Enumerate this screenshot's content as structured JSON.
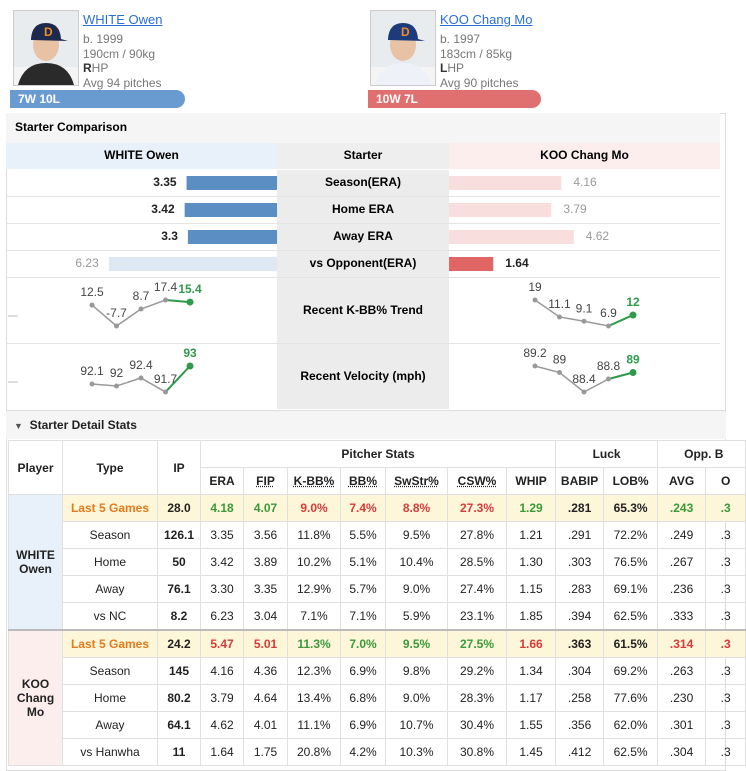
{
  "players": [
    {
      "name": "WHITE Owen",
      "born": "b. 1999",
      "body": "190cm / 90kg",
      "hand": "RHP",
      "pitches": "Avg 94 pitches",
      "record": "7W 10L",
      "color": "#6a9bd0",
      "cap": "#1d2a4d"
    },
    {
      "name": "KOO Chang Mo",
      "born": "b. 1997",
      "body": "183cm / 85kg",
      "hand": "LHP",
      "pitches": "Avg 90 pitches",
      "record": "10W 7L",
      "color": "#e07070",
      "cap": "#1d3b7a"
    }
  ],
  "comparison": {
    "title": "Starter Comparison",
    "header": [
      "WHITE Owen",
      "Starter",
      "KOO Chang Mo"
    ],
    "rows": [
      {
        "label": "Season(ERA)",
        "left": 3.35,
        "right": 4.16
      },
      {
        "label": "Home ERA",
        "left": 3.42,
        "right": 3.79
      },
      {
        "label": "Away ERA",
        "left": 3.3,
        "right": 4.62
      },
      {
        "label": "vs Opponent(ERA)",
        "left": 6.23,
        "right": 1.64
      }
    ],
    "trends": [
      {
        "label": "Recent K-BB% Trend",
        "left": [
          12.5,
          -7.7,
          8.7,
          17.4,
          15.4
        ],
        "right": [
          19,
          11.1,
          9.1,
          6.9,
          12
        ]
      },
      {
        "label": "Recent Velocity (mph)",
        "left": [
          92.1,
          92,
          92.4,
          91.7,
          93
        ],
        "right": [
          89.2,
          89,
          88.4,
          88.8,
          89
        ]
      }
    ]
  },
  "detail": {
    "title": "Starter Detail Stats",
    "groups": [
      "Pitcher Stats",
      "Luck",
      "Opp. B"
    ],
    "columns": [
      "Player",
      "Type",
      "IP",
      "ERA",
      "FIP",
      "K-BB%",
      "BB%",
      "SwStr%",
      "CSW%",
      "WHIP",
      "BABIP",
      "LOB%",
      "AVG",
      "O"
    ],
    "players": [
      {
        "name": "WHITE Owen",
        "color": "#e8f0f9",
        "rows": [
          {
            "type": "Last 5 Games",
            "cells": [
              "28.0",
              "4.18",
              "4.07",
              "9.0%",
              "7.4%",
              "8.8%",
              "27.3%",
              "1.29",
              ".281",
              "65.3%",
              ".243",
              ".3"
            ],
            "colors": [
              "#222",
              "#3a9a3a",
              "#3a9a3a",
              "#d63a3a",
              "#d63a3a",
              "#d63a3a",
              "#d63a3a",
              "#3a9a3a",
              "#222",
              "#222",
              "#3a9a3a",
              "#3a9a3a"
            ]
          },
          {
            "type": "Season",
            "cells": [
              "126.1",
              "3.35",
              "3.56",
              "11.8%",
              "5.5%",
              "9.5%",
              "27.8%",
              "1.21",
              ".291",
              "72.2%",
              ".249",
              ".3"
            ]
          },
          {
            "type": "Home",
            "cells": [
              "50",
              "3.42",
              "3.89",
              "10.2%",
              "5.1%",
              "10.4%",
              "28.5%",
              "1.30",
              ".303",
              "76.5%",
              ".267",
              ".3"
            ]
          },
          {
            "type": "Away",
            "cells": [
              "76.1",
              "3.30",
              "3.35",
              "12.9%",
              "5.7%",
              "9.0%",
              "27.4%",
              "1.15",
              ".283",
              "69.1%",
              ".236",
              ".3"
            ]
          },
          {
            "type": "vs NC",
            "cells": [
              "8.2",
              "6.23",
              "3.04",
              "7.1%",
              "7.1%",
              "5.9%",
              "23.1%",
              "1.85",
              ".394",
              "62.5%",
              ".333",
              ".3"
            ]
          }
        ]
      },
      {
        "name": "KOO Chang Mo",
        "color": "#fdeeee",
        "rows": [
          {
            "type": "Last 5 Games",
            "cells": [
              "24.2",
              "5.47",
              "5.01",
              "11.3%",
              "7.0%",
              "9.5%",
              "27.5%",
              "1.66",
              ".363",
              "61.5%",
              ".314",
              ".3"
            ],
            "colors": [
              "#222",
              "#d63a3a",
              "#d63a3a",
              "#3a9a3a",
              "#3a9a3a",
              "#3a9a3a",
              "#3a9a3a",
              "#d63a3a",
              "#222",
              "#222",
              "#d63a3a",
              "#d63a3a"
            ]
          },
          {
            "type": "Season",
            "cells": [
              "145",
              "4.16",
              "4.36",
              "12.3%",
              "6.9%",
              "9.8%",
              "29.2%",
              "1.34",
              ".304",
              "69.2%",
              ".263",
              ".3"
            ]
          },
          {
            "type": "Home",
            "cells": [
              "80.2",
              "3.79",
              "4.64",
              "13.4%",
              "6.8%",
              "9.0%",
              "28.3%",
              "1.17",
              ".258",
              "77.6%",
              ".230",
              ".3"
            ]
          },
          {
            "type": "Away",
            "cells": [
              "64.1",
              "4.62",
              "4.01",
              "11.1%",
              "6.9%",
              "10.7%",
              "30.4%",
              "1.55",
              ".356",
              "62.0%",
              ".301",
              ".3"
            ]
          },
          {
            "type": "vs Hanwha",
            "cells": [
              "11",
              "1.64",
              "1.75",
              "20.8%",
              "4.2%",
              "10.3%",
              "30.8%",
              "1.45",
              ".412",
              "62.5%",
              ".304",
              ".3"
            ]
          }
        ]
      }
    ]
  }
}
